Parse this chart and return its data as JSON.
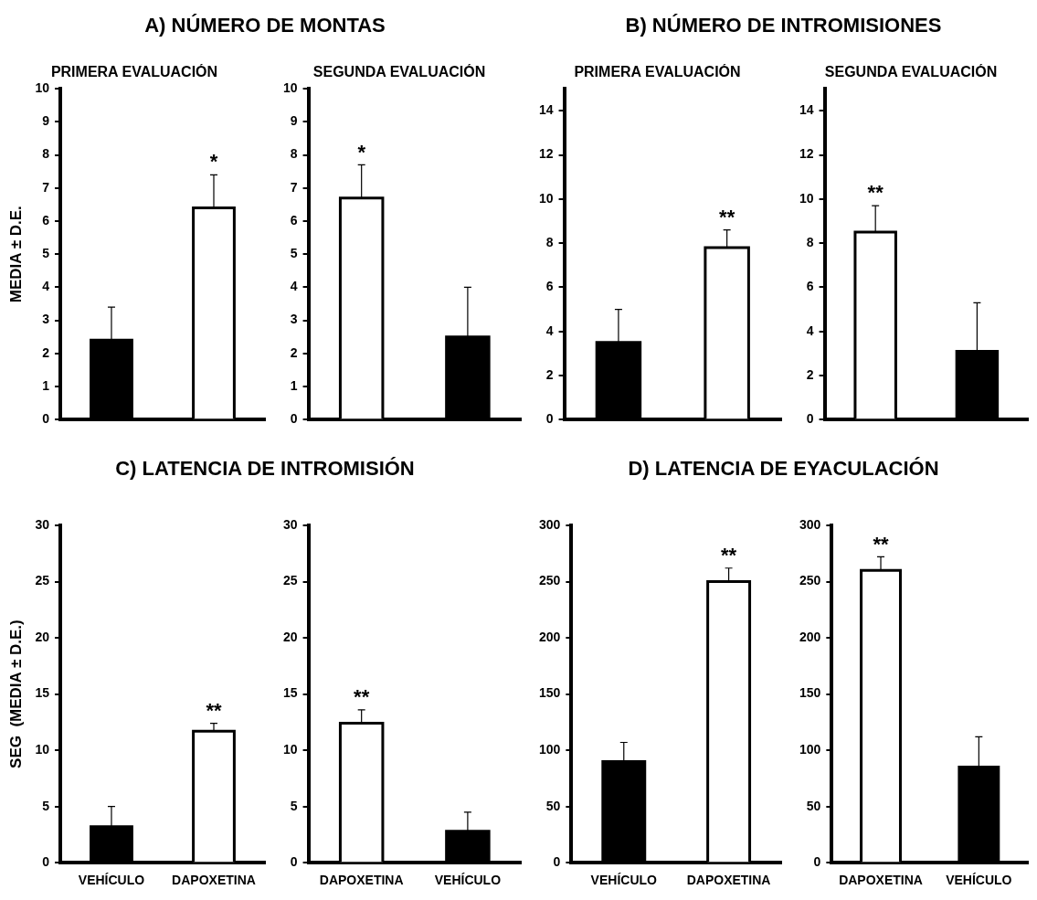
{
  "chart_data": [
    {
      "type": "bar",
      "title": "A) NÚMERO DE MONTAS",
      "subtitle": "PRIMERA EVALUACIÓN",
      "ylabel": "MEDIA ± D.E.",
      "categories": [
        null,
        null
      ],
      "values": [
        2.4,
        6.4
      ],
      "colors": [
        "#000000",
        "#ffffff"
      ],
      "errors": [
        [
          2.4,
          3.4
        ],
        [
          6.4,
          7.4
        ]
      ],
      "value_labels": [
        null,
        "*"
      ],
      "ylim": [
        0,
        10
      ],
      "yticks": [
        0,
        1,
        2,
        3,
        4,
        5,
        6,
        7,
        8,
        9,
        10
      ],
      "grid": false,
      "legend": false
    },
    {
      "type": "bar",
      "subtitle": "SEGUNDA EVALUACIÓN",
      "categories": [
        null,
        null
      ],
      "values": [
        6.7,
        2.5
      ],
      "colors": [
        "#ffffff",
        "#000000"
      ],
      "errors": [
        [
          6.7,
          7.7
        ],
        [
          2.5,
          4.0
        ]
      ],
      "value_labels": [
        "*",
        null
      ],
      "ylim": [
        0,
        10
      ],
      "yticks": [
        0,
        1,
        2,
        3,
        4,
        5,
        6,
        7,
        8,
        9,
        10
      ],
      "grid": false,
      "legend": false
    },
    {
      "type": "bar",
      "title": "B) NÚMERO DE INTROMISIONES",
      "subtitle": "PRIMERA EVALUACIÓN",
      "categories": [
        null,
        null
      ],
      "values": [
        3.5,
        7.8
      ],
      "colors": [
        "#000000",
        "#ffffff"
      ],
      "errors": [
        [
          3.5,
          5.0
        ],
        [
          7.8,
          8.6
        ]
      ],
      "value_labels": [
        null,
        "**"
      ],
      "ylim": [
        0,
        15
      ],
      "yticks": [
        0,
        2,
        4,
        6,
        8,
        10,
        12,
        14
      ],
      "grid": false,
      "legend": false
    },
    {
      "type": "bar",
      "subtitle": "SEGUNDA EVALUACIÓN",
      "categories": [
        null,
        null
      ],
      "values": [
        8.5,
        3.1
      ],
      "colors": [
        "#ffffff",
        "#000000"
      ],
      "errors": [
        [
          8.5,
          9.7
        ],
        [
          3.1,
          5.3
        ]
      ],
      "value_labels": [
        "**",
        null
      ],
      "ylim": [
        0,
        15
      ],
      "yticks": [
        0,
        2,
        4,
        6,
        8,
        10,
        12,
        14
      ],
      "grid": false,
      "legend": false
    },
    {
      "type": "bar",
      "title": "C) LATENCIA DE INTROMISIÓN",
      "ylabel": "SEG  (MEDIA ± D.E.)",
      "categories": [
        "VEHÍCULO",
        "DAPOXETINA"
      ],
      "values": [
        3.2,
        11.7
      ],
      "colors": [
        "#000000",
        "#ffffff"
      ],
      "errors": [
        [
          3.2,
          5.0
        ],
        [
          11.7,
          12.4
        ]
      ],
      "value_labels": [
        null,
        "**"
      ],
      "ylim": [
        0,
        30
      ],
      "yticks": [
        0,
        5,
        10,
        15,
        20,
        25,
        30
      ],
      "grid": false,
      "legend": false
    },
    {
      "type": "bar",
      "categories": [
        "DAPOXETINA",
        "VEHÍCULO"
      ],
      "values": [
        12.4,
        2.8
      ],
      "colors": [
        "#ffffff",
        "#000000"
      ],
      "errors": [
        [
          12.4,
          13.6
        ],
        [
          2.8,
          4.5
        ]
      ],
      "value_labels": [
        "**",
        null
      ],
      "ylim": [
        0,
        30
      ],
      "yticks": [
        0,
        5,
        10,
        15,
        20,
        25,
        30
      ],
      "grid": false,
      "legend": false
    },
    {
      "type": "bar",
      "title": "D) LATENCIA DE EYACULACIÓN",
      "categories": [
        "VEHÍCULO",
        "DAPOXETINA"
      ],
      "values": [
        90,
        250
      ],
      "colors": [
        "#000000",
        "#ffffff"
      ],
      "errors": [
        [
          90,
          107
        ],
        [
          250,
          262
        ]
      ],
      "value_labels": [
        null,
        "**"
      ],
      "ylim": [
        0,
        300
      ],
      "yticks": [
        0,
        50,
        100,
        150,
        200,
        250,
        300
      ],
      "grid": false,
      "legend": false
    },
    {
      "type": "bar",
      "categories": [
        "DAPOXETINA",
        "VEHÍCULO"
      ],
      "values": [
        260,
        85
      ],
      "colors": [
        "#ffffff",
        "#000000"
      ],
      "errors": [
        [
          260,
          272
        ],
        [
          85,
          112
        ]
      ],
      "value_labels": [
        "**",
        null
      ],
      "ylim": [
        0,
        300
      ],
      "yticks": [
        0,
        50,
        100,
        150,
        200,
        250,
        300
      ],
      "grid": false,
      "legend": false
    }
  ]
}
